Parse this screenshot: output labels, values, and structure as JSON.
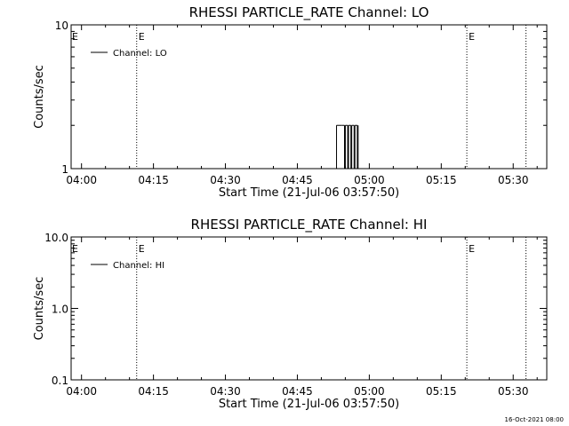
{
  "chart_data": [
    {
      "type": "line",
      "title": "RHESSI PARTICLE_RATE Channel: LO",
      "xlabel": "Start Time (21-Jul-06 03:57:50)",
      "ylabel": "Counts/sec",
      "x_ticks": [
        "04:00",
        "04:15",
        "04:30",
        "04:45",
        "05:00",
        "05:15",
        "05:30"
      ],
      "xlim": [
        "03:57:50",
        "05:37:00"
      ],
      "y_scale": "log",
      "ylim": [
        1,
        10
      ],
      "y_ticks": [
        "1",
        "10"
      ],
      "legend": {
        "position": "top-left",
        "entries": [
          "Channel: LO"
        ]
      },
      "markers": [
        {
          "time": "04:11:30",
          "label": "E"
        },
        {
          "time": "05:20:20",
          "label": "E"
        },
        {
          "time": "05:32:40",
          "label": ""
        }
      ],
      "start_marker_label": "E",
      "series": [
        {
          "name": "Channel: LO",
          "x": [
            "04:52:40",
            "04:53:10",
            "04:54:20",
            "04:54:50",
            "04:55:00",
            "04:55:30",
            "04:55:40",
            "04:56:10",
            "04:56:20",
            "04:56:50",
            "04:57:00",
            "04:57:30",
            "04:57:40"
          ],
          "y": [
            1,
            2,
            2,
            1,
            2,
            1,
            2,
            1,
            2,
            1,
            2,
            1,
            2
          ]
        }
      ]
    },
    {
      "type": "line",
      "title": "RHESSI PARTICLE_RATE Channel: HI",
      "xlabel": "Start Time (21-Jul-06 03:57:50)",
      "ylabel": "Counts/sec",
      "x_ticks": [
        "04:00",
        "04:15",
        "04:30",
        "04:45",
        "05:00",
        "05:15",
        "05:30"
      ],
      "xlim": [
        "03:57:50",
        "05:37:00"
      ],
      "y_scale": "log",
      "ylim": [
        0.1,
        10
      ],
      "y_ticks": [
        "0.1",
        "1.0",
        "10.0"
      ],
      "legend": {
        "position": "top-left",
        "entries": [
          "Channel: HI"
        ]
      },
      "markers": [
        {
          "time": "04:11:30",
          "label": "E"
        },
        {
          "time": "05:20:20",
          "label": "E"
        },
        {
          "time": "05:32:40",
          "label": ""
        }
      ],
      "start_marker_label": "E",
      "series": [
        {
          "name": "Channel: HI",
          "x": [],
          "y": []
        }
      ]
    }
  ],
  "footer": "16-Oct-2021 08:00"
}
